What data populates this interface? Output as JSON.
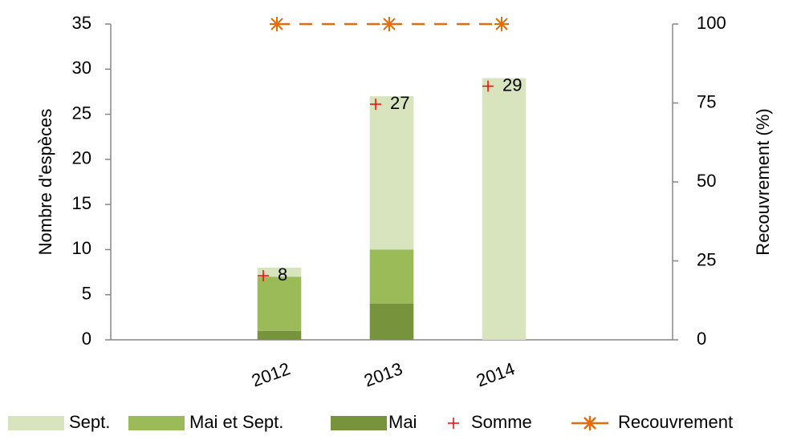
{
  "chart_data": {
    "type": "bar",
    "categories": [
      null,
      "2012",
      "2013",
      "2014",
      null
    ],
    "stacked": true,
    "series": [
      {
        "name": "Mai",
        "color": "#77933c",
        "type": "bar",
        "values": [
          null,
          1,
          4,
          0,
          null
        ]
      },
      {
        "name": "Mai et Sept.",
        "color": "#9bbb59",
        "type": "bar",
        "values": [
          null,
          6,
          6,
          0,
          null
        ]
      },
      {
        "name": "Sept.",
        "color": "#d7e4bd",
        "type": "bar",
        "values": [
          null,
          1,
          17,
          29,
          null
        ]
      },
      {
        "name": "Somme",
        "color": "#ff0000",
        "type": "marker",
        "show_labels": true,
        "values": [
          null,
          8,
          27,
          29,
          null
        ]
      },
      {
        "name": "Recouvrement",
        "color": "#e46c0a",
        "type": "line",
        "axis": "y2",
        "values": [
          null,
          100,
          100,
          100,
          null
        ]
      }
    ],
    "legend_order": [
      2,
      1,
      0,
      3,
      4
    ],
    "ylabel": "Nombre d'espèces",
    "y2label": "Recouvrement (%)",
    "ylim": [
      0,
      35
    ],
    "yticks": [
      0,
      5,
      10,
      15,
      20,
      25,
      30,
      35
    ],
    "y2lim": [
      0,
      100
    ],
    "y2ticks": [
      0,
      25,
      50,
      75,
      100
    ],
    "grid": false,
    "legend": "bottom"
  }
}
